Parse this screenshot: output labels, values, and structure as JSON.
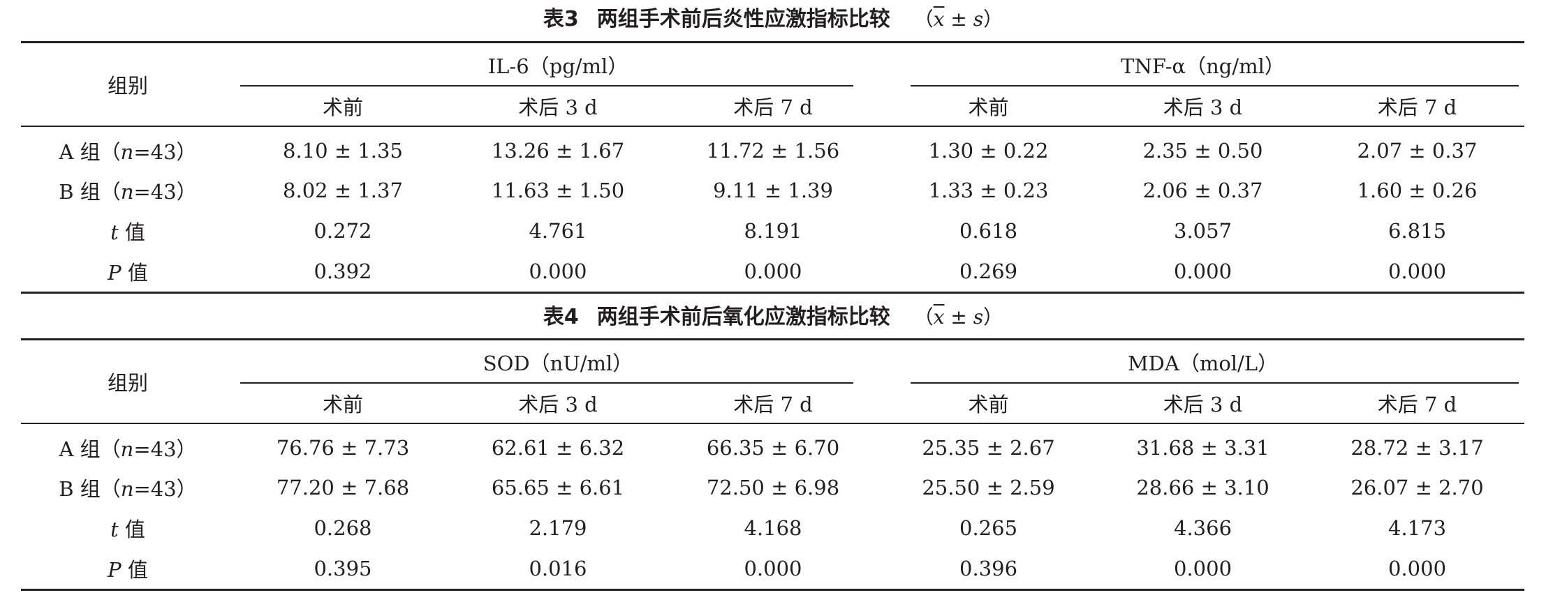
{
  "tables": [
    {
      "caption": {
        "label": "表3",
        "title": "两组手术前后炎性应激指标比较",
        "stat_open": "（",
        "stat_x": "x",
        "stat_pm": " ± ",
        "stat_s": "s",
        "stat_close": "）"
      },
      "group_col": "组别",
      "metrics": [
        {
          "name": "IL-6（pg/ml）",
          "sub": [
            "术前",
            "术后 3 d",
            "术后 7 d"
          ]
        },
        {
          "name": "TNF-α（ng/ml）",
          "sub": [
            "术前",
            "术后 3 d",
            "术后 7 d"
          ]
        }
      ],
      "rows": [
        {
          "label_pre": "A 组（",
          "label_var": "n",
          "label_post": "=43）",
          "cells": [
            "8.10 ± 1.35",
            "13.26 ± 1.67",
            "11.72 ± 1.56",
            "1.30 ± 0.22",
            "2.35 ± 0.50",
            "2.07 ± 0.37"
          ]
        },
        {
          "label_pre": "B 组（",
          "label_var": "n",
          "label_post": "=43）",
          "cells": [
            "8.02 ± 1.37",
            "11.63 ± 1.50",
            "9.11 ± 1.39",
            "1.33 ± 0.23",
            "2.06 ± 0.37",
            "1.60 ± 0.26"
          ]
        },
        {
          "label_pre": "",
          "label_var": "t",
          "label_post": " 值",
          "cells": [
            "0.272",
            "4.761",
            "8.191",
            "0.618",
            "3.057",
            "6.815"
          ]
        },
        {
          "label_pre": "",
          "label_var": "P",
          "label_post": " 值",
          "cells": [
            "0.392",
            "0.000",
            "0.000",
            "0.269",
            "0.000",
            "0.000"
          ]
        }
      ]
    },
    {
      "caption": {
        "label": "表4",
        "title": "两组手术前后氧化应激指标比较",
        "stat_open": "（",
        "stat_x": "x",
        "stat_pm": " ± ",
        "stat_s": "s",
        "stat_close": "）"
      },
      "group_col": "组别",
      "metrics": [
        {
          "name": "SOD（nU/ml）",
          "sub": [
            "术前",
            "术后 3 d",
            "术后 7 d"
          ]
        },
        {
          "name": "MDA（mol/L）",
          "sub": [
            "术前",
            "术后 3 d",
            "术后 7 d"
          ]
        }
      ],
      "rows": [
        {
          "label_pre": "A 组（",
          "label_var": "n",
          "label_post": "=43）",
          "cells": [
            "76.76 ± 7.73",
            "62.61 ± 6.32",
            "66.35 ± 6.70",
            "25.35 ± 2.67",
            "31.68 ± 3.31",
            "28.72 ± 3.17"
          ]
        },
        {
          "label_pre": "B 组（",
          "label_var": "n",
          "label_post": "=43）",
          "cells": [
            "77.20 ± 7.68",
            "65.65 ± 6.61",
            "72.50 ± 6.98",
            "25.50 ± 2.59",
            "28.66 ± 3.10",
            "26.07 ± 2.70"
          ]
        },
        {
          "label_pre": "",
          "label_var": "t",
          "label_post": " 值",
          "cells": [
            "0.268",
            "2.179",
            "4.168",
            "0.265",
            "4.366",
            "4.173"
          ]
        },
        {
          "label_pre": "",
          "label_var": "P",
          "label_post": " 值",
          "cells": [
            "0.395",
            "0.016",
            "0.000",
            "0.396",
            "0.000",
            "0.000"
          ]
        }
      ]
    }
  ]
}
